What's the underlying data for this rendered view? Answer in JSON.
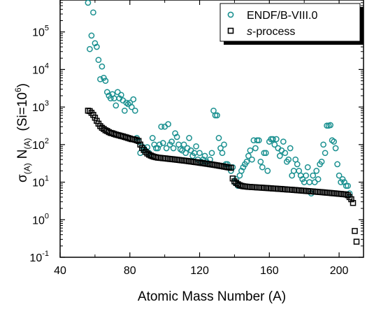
{
  "chart_data": {
    "type": "scatter",
    "xlabel": "Atomic Mass Number (A)",
    "ylabel": {
      "sigma": "σ",
      "sigma_sub": "(A)",
      "n": "N",
      "n_sub": "(A)",
      "paren": "(Si=10",
      "paren_exp": "6",
      "paren_close": ")"
    },
    "xlim": [
      40,
      214
    ],
    "ylim_log10": [
      -1,
      5.85
    ],
    "y_scale": "log",
    "x_ticks": [
      "40",
      "80",
      "120",
      "160",
      "200"
    ],
    "y_ticks": [
      {
        "base": "10",
        "exp": "-1",
        "value": 0.1
      },
      {
        "base": "10",
        "exp": "0",
        "value": 1
      },
      {
        "base": "10",
        "exp": "1",
        "value": 10
      },
      {
        "base": "10",
        "exp": "2",
        "value": 100
      },
      {
        "base": "10",
        "exp": "3",
        "value": 1000
      },
      {
        "base": "10",
        "exp": "4",
        "value": 10000
      },
      {
        "base": "10",
        "exp": "5",
        "value": 100000
      }
    ],
    "legend_position": "top-right",
    "series": [
      {
        "name": "ENDF/B-VIII.0",
        "marker": "circle",
        "color": "#1a9090",
        "points": [
          [
            56,
            600000
          ],
          [
            57,
            35000
          ],
          [
            58,
            80000
          ],
          [
            59,
            330000
          ],
          [
            60,
            50000
          ],
          [
            61,
            40000
          ],
          [
            62,
            18000
          ],
          [
            63,
            5500
          ],
          [
            64,
            12000
          ],
          [
            65,
            6000
          ],
          [
            66,
            5000
          ],
          [
            67,
            2500
          ],
          [
            68,
            2000
          ],
          [
            69,
            1700
          ],
          [
            70,
            2200
          ],
          [
            71,
            1700
          ],
          [
            72,
            1100
          ],
          [
            73,
            2500
          ],
          [
            74,
            1700
          ],
          [
            75,
            2100
          ],
          [
            76,
            1500
          ],
          [
            77,
            800
          ],
          [
            78,
            1300
          ],
          [
            79,
            1200
          ],
          [
            80,
            1300
          ],
          [
            81,
            1000
          ],
          [
            82,
            1600
          ],
          [
            83,
            800
          ],
          [
            84,
            150
          ],
          [
            85,
            120
          ],
          [
            86,
            60
          ],
          [
            87,
            90
          ],
          [
            88,
            80
          ],
          [
            89,
            70
          ],
          [
            90,
            85
          ],
          [
            91,
            60
          ],
          [
            92,
            50
          ],
          [
            93,
            150
          ],
          [
            94,
            100
          ],
          [
            95,
            80
          ],
          [
            96,
            80
          ],
          [
            97,
            100
          ],
          [
            98,
            300
          ],
          [
            99,
            110
          ],
          [
            100,
            300
          ],
          [
            101,
            80
          ],
          [
            102,
            350
          ],
          [
            103,
            100
          ],
          [
            104,
            120
          ],
          [
            105,
            80
          ],
          [
            106,
            200
          ],
          [
            107,
            160
          ],
          [
            108,
            100
          ],
          [
            109,
            75
          ],
          [
            110,
            70
          ],
          [
            111,
            100
          ],
          [
            112,
            60
          ],
          [
            113,
            80
          ],
          [
            114,
            150
          ],
          [
            115,
            70
          ],
          [
            116,
            50
          ],
          [
            117,
            60
          ],
          [
            118,
            90
          ],
          [
            119,
            40
          ],
          [
            120,
            60
          ],
          [
            121,
            35
          ],
          [
            122,
            40
          ],
          [
            123,
            50
          ],
          [
            124,
            35
          ],
          [
            125,
            30
          ],
          [
            126,
            40
          ],
          [
            127,
            60
          ],
          [
            128,
            800
          ],
          [
            129,
            600
          ],
          [
            130,
            600
          ],
          [
            131,
            150
          ],
          [
            132,
            80
          ],
          [
            133,
            60
          ],
          [
            134,
            100
          ],
          [
            135,
            30
          ],
          [
            136,
            30
          ],
          [
            137,
            25
          ],
          [
            138,
            20
          ],
          [
            139,
            25
          ],
          [
            140,
            10
          ],
          [
            141,
            12
          ],
          [
            142,
            8
          ],
          [
            143,
            15
          ],
          [
            144,
            20
          ],
          [
            145,
            25
          ],
          [
            146,
            30
          ],
          [
            147,
            35
          ],
          [
            148,
            50
          ],
          [
            149,
            70
          ],
          [
            150,
            40
          ],
          [
            151,
            130
          ],
          [
            152,
            80
          ],
          [
            153,
            130
          ],
          [
            154,
            130
          ],
          [
            155,
            35
          ],
          [
            156,
            25
          ],
          [
            157,
            60
          ],
          [
            158,
            60
          ],
          [
            159,
            20
          ],
          [
            160,
            120
          ],
          [
            161,
            140
          ],
          [
            162,
            140
          ],
          [
            163,
            100
          ],
          [
            164,
            140
          ],
          [
            165,
            80
          ],
          [
            166,
            50
          ],
          [
            167,
            70
          ],
          [
            168,
            120
          ],
          [
            169,
            60
          ],
          [
            170,
            35
          ],
          [
            171,
            40
          ],
          [
            172,
            80
          ],
          [
            173,
            15
          ],
          [
            174,
            20
          ],
          [
            175,
            40
          ],
          [
            176,
            30
          ],
          [
            177,
            20
          ],
          [
            178,
            15
          ],
          [
            179,
            12
          ],
          [
            180,
            10
          ],
          [
            181,
            15
          ],
          [
            182,
            25
          ],
          [
            183,
            10
          ],
          [
            184,
            5
          ],
          [
            185,
            15
          ],
          [
            186,
            10
          ],
          [
            187,
            20
          ],
          [
            188,
            12
          ],
          [
            189,
            30
          ],
          [
            190,
            35
          ],
          [
            191,
            100
          ],
          [
            192,
            60
          ],
          [
            193,
            320
          ],
          [
            194,
            320
          ],
          [
            195,
            330
          ],
          [
            196,
            130
          ],
          [
            197,
            120
          ],
          [
            198,
            80
          ],
          [
            199,
            30
          ],
          [
            200,
            15
          ],
          [
            201,
            10
          ],
          [
            202,
            12
          ],
          [
            203,
            10
          ],
          [
            204,
            8
          ],
          [
            205,
            8
          ],
          [
            206,
            5
          ]
        ]
      },
      {
        "name": "s-process",
        "name_italic": "s",
        "name_rest": "-process",
        "marker": "square",
        "color": "#000000",
        "points": [
          [
            56,
            800
          ],
          [
            57,
            780
          ],
          [
            58,
            700
          ],
          [
            59,
            620
          ],
          [
            60,
            520
          ],
          [
            61,
            430
          ],
          [
            62,
            360
          ],
          [
            63,
            310
          ],
          [
            64,
            280
          ],
          [
            65,
            260
          ],
          [
            66,
            240
          ],
          [
            67,
            230
          ],
          [
            68,
            215
          ],
          [
            69,
            205
          ],
          [
            70,
            200
          ],
          [
            71,
            192
          ],
          [
            72,
            185
          ],
          [
            73,
            180
          ],
          [
            74,
            175
          ],
          [
            75,
            170
          ],
          [
            76,
            165
          ],
          [
            77,
            160
          ],
          [
            78,
            155
          ],
          [
            79,
            150
          ],
          [
            80,
            145
          ],
          [
            81,
            140
          ],
          [
            82,
            138
          ],
          [
            83,
            135
          ],
          [
            84,
            130
          ],
          [
            85,
            125
          ],
          [
            86,
            100
          ],
          [
            87,
            82
          ],
          [
            88,
            72
          ],
          [
            89,
            64
          ],
          [
            90,
            58
          ],
          [
            91,
            54
          ],
          [
            92,
            51
          ],
          [
            93,
            49
          ],
          [
            94,
            47
          ],
          [
            95,
            46
          ],
          [
            96,
            45
          ],
          [
            97,
            44.5
          ],
          [
            98,
            44
          ],
          [
            99,
            43.5
          ],
          [
            100,
            43
          ],
          [
            101,
            42.5
          ],
          [
            102,
            42
          ],
          [
            103,
            41.5
          ],
          [
            104,
            41
          ],
          [
            105,
            40.5
          ],
          [
            106,
            40
          ],
          [
            107,
            39.5
          ],
          [
            108,
            39
          ],
          [
            109,
            38.5
          ],
          [
            110,
            38
          ],
          [
            111,
            37.5
          ],
          [
            112,
            37
          ],
          [
            113,
            36.5
          ],
          [
            114,
            36
          ],
          [
            115,
            35.5
          ],
          [
            116,
            35
          ],
          [
            117,
            34.5
          ],
          [
            118,
            34
          ],
          [
            119,
            33.5
          ],
          [
            120,
            33
          ],
          [
            121,
            32.5
          ],
          [
            122,
            32
          ],
          [
            123,
            31.5
          ],
          [
            124,
            31
          ],
          [
            125,
            30.5
          ],
          [
            126,
            30
          ],
          [
            127,
            29.5
          ],
          [
            128,
            29
          ],
          [
            129,
            28.5
          ],
          [
            130,
            28
          ],
          [
            131,
            27.5
          ],
          [
            132,
            27
          ],
          [
            133,
            26.5
          ],
          [
            134,
            26
          ],
          [
            135,
            25.5
          ],
          [
            136,
            25
          ],
          [
            137,
            24.5
          ],
          [
            138,
            24
          ],
          [
            139,
            12.5
          ],
          [
            140,
            10.5
          ],
          [
            141,
            9.5
          ],
          [
            142,
            8.8
          ],
          [
            143,
            8.3
          ],
          [
            144,
            8.0
          ],
          [
            145,
            7.8
          ],
          [
            146,
            7.7
          ],
          [
            147,
            7.6
          ],
          [
            148,
            7.5
          ],
          [
            149,
            7.45
          ],
          [
            150,
            7.4
          ],
          [
            151,
            7.35
          ],
          [
            152,
            7.3
          ],
          [
            153,
            7.25
          ],
          [
            154,
            7.2
          ],
          [
            155,
            7.15
          ],
          [
            156,
            7.1
          ],
          [
            157,
            7.05
          ],
          [
            158,
            7.0
          ],
          [
            159,
            6.95
          ],
          [
            160,
            6.9
          ],
          [
            161,
            6.85
          ],
          [
            162,
            6.8
          ],
          [
            163,
            6.75
          ],
          [
            164,
            6.7
          ],
          [
            165,
            6.65
          ],
          [
            166,
            6.6
          ],
          [
            167,
            6.55
          ],
          [
            168,
            6.5
          ],
          [
            169,
            6.45
          ],
          [
            170,
            6.4
          ],
          [
            171,
            6.35
          ],
          [
            172,
            6.3
          ],
          [
            173,
            6.25
          ],
          [
            174,
            6.2
          ],
          [
            175,
            6.15
          ],
          [
            176,
            6.1
          ],
          [
            177,
            6.05
          ],
          [
            178,
            6.0
          ],
          [
            179,
            5.95
          ],
          [
            180,
            5.9
          ],
          [
            181,
            5.85
          ],
          [
            182,
            5.8
          ],
          [
            183,
            5.75
          ],
          [
            184,
            5.7
          ],
          [
            185,
            5.65
          ],
          [
            186,
            5.6
          ],
          [
            187,
            5.55
          ],
          [
            188,
            5.5
          ],
          [
            189,
            5.45
          ],
          [
            190,
            5.4
          ],
          [
            191,
            5.35
          ],
          [
            192,
            5.3
          ],
          [
            193,
            5.25
          ],
          [
            194,
            5.2
          ],
          [
            195,
            5.15
          ],
          [
            196,
            5.1
          ],
          [
            197,
            5.05
          ],
          [
            198,
            5.0
          ],
          [
            199,
            4.95
          ],
          [
            200,
            4.9
          ],
          [
            201,
            4.85
          ],
          [
            202,
            4.8
          ],
          [
            203,
            4.75
          ],
          [
            204,
            4.7
          ],
          [
            205,
            4.5
          ],
          [
            206,
            4.0
          ],
          [
            207,
            3.5
          ],
          [
            208,
            2.8
          ],
          [
            209,
            0.5
          ],
          [
            210,
            0.26
          ]
        ]
      }
    ]
  }
}
